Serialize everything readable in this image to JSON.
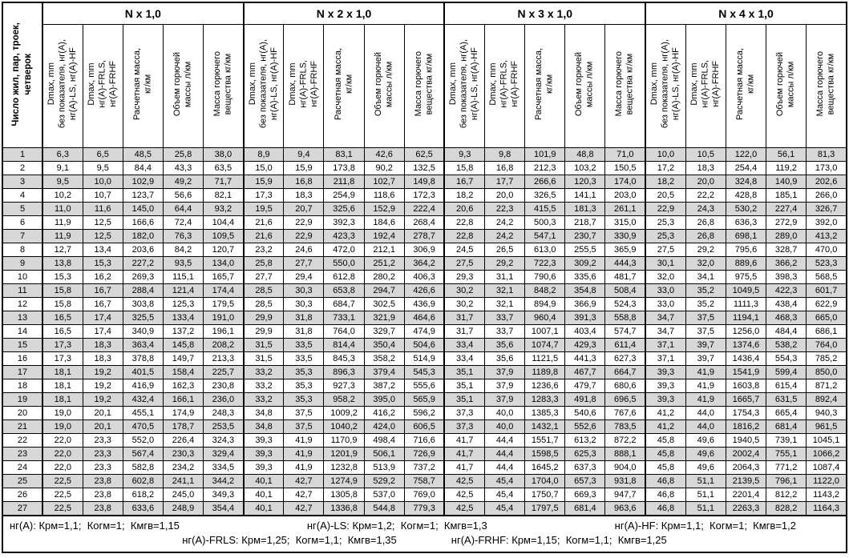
{
  "table": {
    "row_header": "Число жил, пар, троек,\nчетверок",
    "groups": [
      {
        "title": "N x 1,0"
      },
      {
        "title": "N x 2 x 1,0"
      },
      {
        "title": "N x 3 x 1,0"
      },
      {
        "title": "N x 4 x 1,0"
      }
    ],
    "subheaders": [
      "Dmax, mm\nбез показателя, нг(А),\nнг(А)-LS, нг(А)-HF",
      "Dmax, mm\nнг(А)-FRLS,\nнг(А)-FRHF",
      "Расчетная масса,\nкг/км",
      "Объем горючей\nмассы л/км",
      "Масса горючего\nвещества кг/км"
    ],
    "rows": [
      {
        "n": "1",
        "values": [
          "6,3",
          "6,5",
          "48,5",
          "25,8",
          "38,0",
          "8,9",
          "9,4",
          "83,1",
          "42,6",
          "62,5",
          "9,3",
          "9,8",
          "101,9",
          "48,8",
          "71,0",
          "10,0",
          "10,5",
          "122,0",
          "56,1",
          "81,3"
        ]
      },
      {
        "n": "2",
        "values": [
          "9,1",
          "9,5",
          "84,4",
          "43,3",
          "63,5",
          "15,0",
          "15,9",
          "173,8",
          "90,2",
          "132,5",
          "15,8",
          "16,8",
          "212,3",
          "103,2",
          "150,5",
          "17,2",
          "18,3",
          "254,4",
          "119,2",
          "173,0"
        ]
      },
      {
        "n": "3",
        "values": [
          "9,5",
          "10,0",
          "102,9",
          "49,2",
          "71,7",
          "15,9",
          "16,8",
          "211,8",
          "102,7",
          "149,8",
          "16,7",
          "17,7",
          "266,6",
          "120,3",
          "174,0",
          "18,2",
          "20,0",
          "324,8",
          "140,9",
          "202,6"
        ]
      },
      {
        "n": "4",
        "values": [
          "10,2",
          "10,7",
          "123,7",
          "56,6",
          "82,1",
          "17,3",
          "18,3",
          "254,9",
          "118,6",
          "172,3",
          "18,2",
          "20,0",
          "326,5",
          "141,1",
          "203,0",
          "20,5",
          "22,2",
          "428,8",
          "185,1",
          "266,0"
        ]
      },
      {
        "n": "5",
        "values": [
          "11,0",
          "11,6",
          "145,0",
          "64,4",
          "93,2",
          "19,5",
          "20,7",
          "325,6",
          "152,9",
          "222,4",
          "20,6",
          "22,3",
          "415,5",
          "181,3",
          "261,1",
          "22,9",
          "24,3",
          "530,2",
          "227,4",
          "326,7"
        ]
      },
      {
        "n": "6",
        "values": [
          "11,9",
          "12,5",
          "166,6",
          "72,4",
          "104,4",
          "21,6",
          "22,9",
          "392,3",
          "184,6",
          "268,4",
          "22,8",
          "24,2",
          "500,3",
          "218,7",
          "315,0",
          "25,3",
          "26,8",
          "636,3",
          "272,9",
          "392,0"
        ]
      },
      {
        "n": "7",
        "values": [
          "11,9",
          "12,5",
          "182,0",
          "76,3",
          "109,5",
          "21,6",
          "22,9",
          "423,3",
          "192,4",
          "278,7",
          "22,8",
          "24,2",
          "547,1",
          "230,7",
          "330,9",
          "25,3",
          "26,8",
          "698,1",
          "289,0",
          "413,2"
        ]
      },
      {
        "n": "8",
        "values": [
          "12,7",
          "13,4",
          "203,6",
          "84,2",
          "120,7",
          "23,2",
          "24,6",
          "472,0",
          "212,1",
          "306,9",
          "24,5",
          "26,5",
          "613,0",
          "255,5",
          "365,9",
          "27,5",
          "29,2",
          "795,6",
          "328,7",
          "470,0"
        ]
      },
      {
        "n": "9",
        "values": [
          "13,8",
          "15,3",
          "227,2",
          "93,5",
          "134,0",
          "25,8",
          "27,7",
          "550,0",
          "251,2",
          "364,2",
          "27,5",
          "29,2",
          "722,3",
          "309,2",
          "444,3",
          "30,1",
          "32,0",
          "889,6",
          "366,2",
          "523,3"
        ]
      },
      {
        "n": "10",
        "values": [
          "15,3",
          "16,2",
          "269,3",
          "115,1",
          "165,7",
          "27,7",
          "29,4",
          "612,8",
          "280,2",
          "406,3",
          "29,3",
          "31,1",
          "790,6",
          "335,6",
          "481,7",
          "32,0",
          "34,1",
          "975,5",
          "398,3",
          "568,5"
        ]
      },
      {
        "n": "11",
        "values": [
          "15,8",
          "16,7",
          "288,4",
          "121,4",
          "174,4",
          "28,5",
          "30,3",
          "653,8",
          "294,7",
          "426,6",
          "30,2",
          "32,1",
          "848,2",
          "354,8",
          "508,4",
          "33,0",
          "35,2",
          "1049,5",
          "422,3",
          "601,7"
        ]
      },
      {
        "n": "12",
        "values": [
          "15,8",
          "16,7",
          "303,8",
          "125,3",
          "179,5",
          "28,5",
          "30,3",
          "684,7",
          "302,5",
          "436,9",
          "30,2",
          "32,1",
          "894,9",
          "366,9",
          "524,3",
          "33,0",
          "35,2",
          "1111,3",
          "438,4",
          "622,9"
        ]
      },
      {
        "n": "13",
        "values": [
          "16,5",
          "17,4",
          "325,5",
          "133,4",
          "191,0",
          "29,9",
          "31,8",
          "733,1",
          "321,9",
          "464,6",
          "31,7",
          "33,7",
          "960,4",
          "391,3",
          "558,8",
          "34,7",
          "37,5",
          "1194,1",
          "468,3",
          "665,0"
        ]
      },
      {
        "n": "14",
        "values": [
          "16,5",
          "17,4",
          "340,9",
          "137,2",
          "196,1",
          "29,9",
          "31,8",
          "764,0",
          "329,7",
          "474,9",
          "31,7",
          "33,7",
          "1007,1",
          "403,4",
          "574,7",
          "34,7",
          "37,5",
          "1256,0",
          "484,4",
          "686,1"
        ]
      },
      {
        "n": "15",
        "values": [
          "17,3",
          "18,3",
          "363,4",
          "145,8",
          "208,2",
          "31,5",
          "33,5",
          "814,4",
          "350,4",
          "504,6",
          "33,4",
          "35,6",
          "1074,7",
          "429,3",
          "611,4",
          "37,1",
          "39,7",
          "1374,6",
          "538,2",
          "764,0"
        ]
      },
      {
        "n": "16",
        "values": [
          "17,3",
          "18,3",
          "378,8",
          "149,7",
          "213,3",
          "31,5",
          "33,5",
          "845,3",
          "358,2",
          "514,9",
          "33,4",
          "35,6",
          "1121,5",
          "441,3",
          "627,3",
          "37,1",
          "39,7",
          "1436,4",
          "554,3",
          "785,2"
        ]
      },
      {
        "n": "17",
        "values": [
          "18,1",
          "19,2",
          "401,5",
          "158,4",
          "225,7",
          "33,2",
          "35,3",
          "896,3",
          "379,4",
          "545,3",
          "35,1",
          "37,9",
          "1189,8",
          "467,7",
          "664,7",
          "39,3",
          "41,9",
          "1541,9",
          "599,4",
          "850,0"
        ]
      },
      {
        "n": "18",
        "values": [
          "18,1",
          "19,2",
          "416,9",
          "162,3",
          "230,8",
          "33,2",
          "35,3",
          "927,3",
          "387,2",
          "555,6",
          "35,1",
          "37,9",
          "1236,6",
          "479,7",
          "680,6",
          "39,3",
          "41,9",
          "1603,8",
          "615,4",
          "871,2"
        ]
      },
      {
        "n": "19",
        "values": [
          "18,1",
          "19,2",
          "432,4",
          "166,1",
          "236,0",
          "33,2",
          "35,3",
          "958,2",
          "395,0",
          "565,9",
          "35,1",
          "37,9",
          "1283,3",
          "491,8",
          "696,5",
          "39,3",
          "41,9",
          "1665,7",
          "631,5",
          "892,4"
        ]
      },
      {
        "n": "20",
        "values": [
          "19,0",
          "20,1",
          "455,1",
          "174,9",
          "248,3",
          "34,8",
          "37,5",
          "1009,2",
          "416,2",
          "596,2",
          "37,3",
          "40,0",
          "1385,3",
          "540,6",
          "767,6",
          "41,2",
          "44,0",
          "1754,3",
          "665,4",
          "940,3"
        ]
      },
      {
        "n": "21",
        "values": [
          "19,0",
          "20,1",
          "470,5",
          "178,7",
          "253,5",
          "34,8",
          "37,5",
          "1040,2",
          "424,0",
          "606,5",
          "37,3",
          "40,0",
          "1432,1",
          "552,6",
          "783,5",
          "41,2",
          "44,0",
          "1816,2",
          "681,4",
          "961,5"
        ]
      },
      {
        "n": "22",
        "values": [
          "22,0",
          "23,3",
          "552,0",
          "226,4",
          "324,3",
          "39,3",
          "41,9",
          "1170,9",
          "498,4",
          "716,6",
          "41,7",
          "44,4",
          "1551,7",
          "613,2",
          "872,2",
          "45,8",
          "49,6",
          "1940,5",
          "739,1",
          "1045,1"
        ]
      },
      {
        "n": "23",
        "values": [
          "22,0",
          "23,3",
          "567,4",
          "230,3",
          "329,4",
          "39,3",
          "41,9",
          "1201,9",
          "506,1",
          "726,9",
          "41,7",
          "44,4",
          "1598,5",
          "625,3",
          "888,1",
          "45,8",
          "49,6",
          "2002,4",
          "755,1",
          "1066,2"
        ]
      },
      {
        "n": "24",
        "values": [
          "22,0",
          "23,3",
          "582,8",
          "234,2",
          "334,5",
          "39,3",
          "41,9",
          "1232,8",
          "513,9",
          "737,2",
          "41,7",
          "44,4",
          "1645,2",
          "637,3",
          "904,0",
          "45,8",
          "49,6",
          "2064,3",
          "771,2",
          "1087,4"
        ]
      },
      {
        "n": "25",
        "values": [
          "22,5",
          "23,8",
          "602,8",
          "241,1",
          "344,2",
          "40,1",
          "42,7",
          "1274,9",
          "529,2",
          "758,7",
          "42,5",
          "45,4",
          "1704,0",
          "657,3",
          "931,8",
          "46,8",
          "51,1",
          "2139,5",
          "796,1",
          "1122,0"
        ]
      },
      {
        "n": "26",
        "values": [
          "22,5",
          "23,8",
          "618,2",
          "245,0",
          "349,3",
          "40,1",
          "42,7",
          "1305,8",
          "537,0",
          "769,0",
          "42,5",
          "45,4",
          "1750,7",
          "669,3",
          "947,7",
          "46,8",
          "51,1",
          "2201,4",
          "812,2",
          "1143,2"
        ]
      },
      {
        "n": "27",
        "values": [
          "22,5",
          "23,8",
          "633,6",
          "248,9",
          "354,4",
          "40,1",
          "42,7",
          "1336,8",
          "544,8",
          "779,3",
          "42,5",
          "45,4",
          "1797,5",
          "681,4",
          "963,6",
          "46,8",
          "51,1",
          "2263,3",
          "828,2",
          "1164,3"
        ]
      }
    ]
  },
  "footer": {
    "line1": [
      "нг(А): Крм=1,1;  Когм=1;  Кмгв=1,15",
      "нг(А)-LS: Крм=1,2;  Когм=1;  Кмгв=1,3",
      "нг(А)-HF: Крм=1,1;  Когм=1;  Кмгв=1,2"
    ],
    "line2": [
      "нг(А)-FRLS: Крм=1,25;  Когм=1,1;  Кмгв=1,35",
      "нг(А)-FRHF: Крм=1,15;  Когм=1,1;  Кмгв=1,25"
    ]
  },
  "colors": {
    "stripe": "#d7d7d7",
    "border": "#000000",
    "background": "#ffffff"
  }
}
